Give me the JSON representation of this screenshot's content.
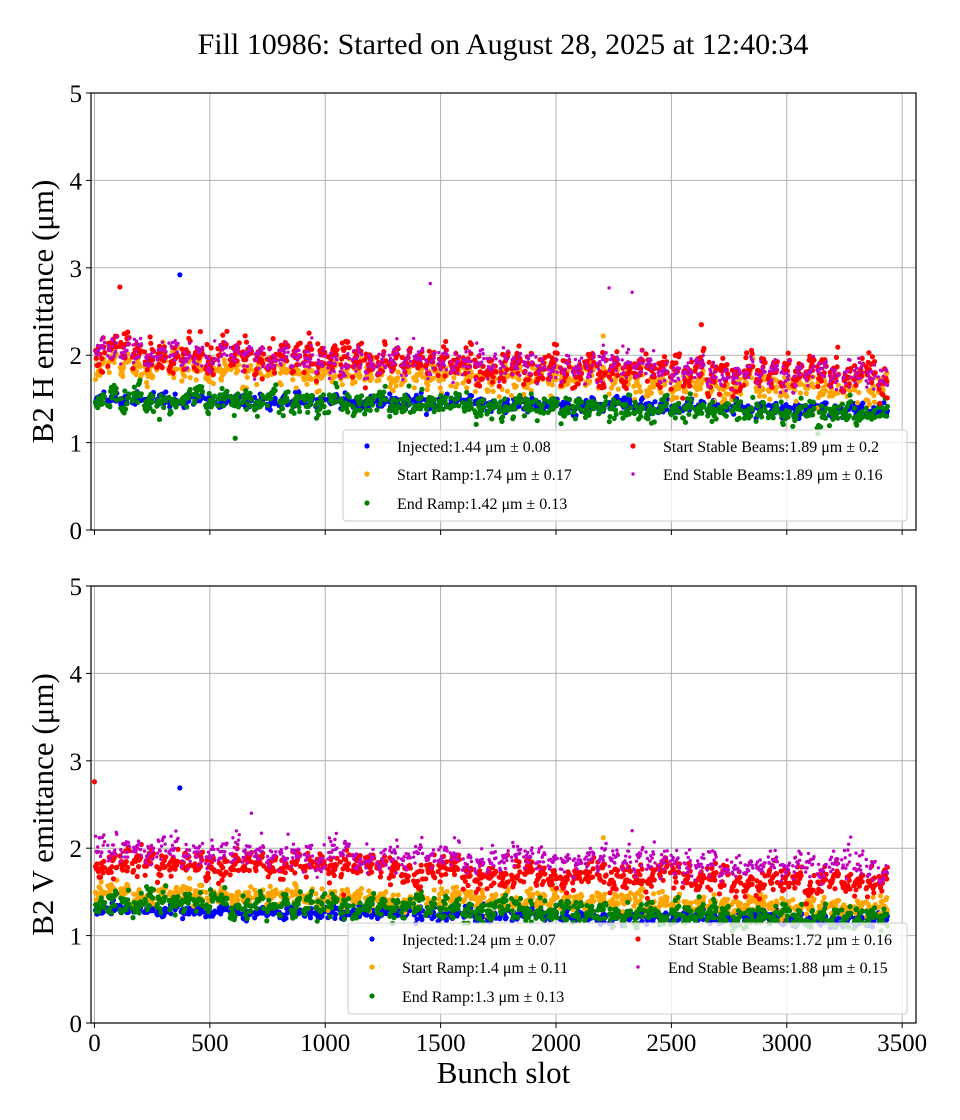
{
  "chart_data": [
    {
      "type": "scatter",
      "title": "Fill 10986: Started on August 28, 2025 at 12:40:34",
      "xlabel": "",
      "ylabel": "B2 H emittance (μm)",
      "xlim": [
        -15,
        3560
      ],
      "ylim": [
        0,
        5
      ],
      "xticks": [
        0,
        500,
        1000,
        1500,
        2000,
        2500,
        3000,
        3500
      ],
      "yticks": [
        0,
        1,
        2,
        3,
        4,
        5
      ],
      "grid": true,
      "legend_position": "lower-right",
      "legend_columns": 2,
      "series": [
        {
          "name": "Injected:1.44 μm ± 0.08",
          "color": "#0000ff",
          "mean": 1.44,
          "std": 0.08,
          "outliers": [
            [
              370,
              2.92
            ]
          ]
        },
        {
          "name": "Start Ramp:1.74 μm ± 0.17",
          "color": "#ffa500",
          "mean": 1.74,
          "std": 0.17,
          "outliers": [
            [
              2205,
              2.22
            ]
          ]
        },
        {
          "name": "End Ramp:1.42 μm ± 0.13",
          "color": "#008000",
          "mean": 1.42,
          "std": 0.13,
          "outliers": [
            [
              610,
              1.05
            ]
          ]
        },
        {
          "name": "Start Stable Beams:1.89 μm ± 0.2",
          "color": "#ff0000",
          "mean": 1.89,
          "std": 0.2,
          "outliers": [
            [
              110,
              2.78
            ],
            [
              2630,
              2.35
            ]
          ]
        },
        {
          "name": "End Stable Beams:1.89 μm ± 0.16",
          "color": "#bf00bf",
          "mean": 1.89,
          "std": 0.16,
          "outliers": [
            [
              1455,
              2.82
            ],
            [
              2230,
              2.77
            ],
            [
              2330,
              2.72
            ]
          ]
        }
      ]
    },
    {
      "type": "scatter",
      "xlabel": "Bunch slot",
      "ylabel": "B2 V emittance (μm)",
      "xlim": [
        -15,
        3560
      ],
      "ylim": [
        0,
        5
      ],
      "xticks": [
        0,
        500,
        1000,
        1500,
        2000,
        2500,
        3000,
        3500
      ],
      "yticks": [
        0,
        1,
        2,
        3,
        4,
        5
      ],
      "grid": true,
      "legend_position": "lower-right",
      "legend_columns": 2,
      "series": [
        {
          "name": "Injected:1.24 μm ± 0.07",
          "color": "#0000ff",
          "mean": 1.24,
          "std": 0.07,
          "outliers": [
            [
              370,
              2.69
            ]
          ]
        },
        {
          "name": "Start Ramp:1.4 μm ± 0.11",
          "color": "#ffa500",
          "mean": 1.4,
          "std": 0.11,
          "outliers": [
            [
              2205,
              2.12
            ]
          ]
        },
        {
          "name": "End Ramp:1.3 μm ± 0.13",
          "color": "#008000",
          "mean": 1.3,
          "std": 0.13,
          "outliers": []
        },
        {
          "name": "Start Stable Beams:1.72 μm ± 0.16",
          "color": "#ff0000",
          "mean": 1.72,
          "std": 0.16,
          "outliers": [
            [
              0,
              2.76
            ]
          ]
        },
        {
          "name": "End Stable Beams:1.88 μm ± 0.15",
          "color": "#bf00bf",
          "mean": 1.88,
          "std": 0.15,
          "outliers": [
            [
              680,
              2.4
            ],
            [
              2330,
              2.2
            ]
          ]
        }
      ]
    }
  ]
}
